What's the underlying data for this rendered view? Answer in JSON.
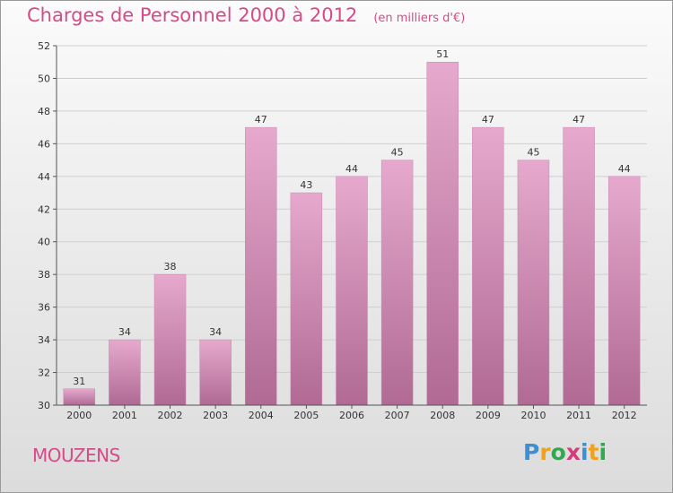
{
  "chart_data": {
    "type": "bar",
    "title": "Charges de Personnel 2000 à 2012",
    "subtitle": "(en milliers d'€)",
    "categories": [
      "2000",
      "2001",
      "2002",
      "2003",
      "2004",
      "2005",
      "2006",
      "2007",
      "2008",
      "2009",
      "2010",
      "2011",
      "2012"
    ],
    "values": [
      31,
      34,
      38,
      34,
      47,
      43,
      44,
      45,
      51,
      47,
      45,
      47,
      44
    ],
    "ylim": [
      30,
      52
    ],
    "yticks": [
      30,
      32,
      34,
      36,
      38,
      40,
      42,
      44,
      46,
      48,
      50,
      52
    ],
    "grid": true,
    "bar_color_top": "#e6a9cd",
    "bar_color_bottom": "#b06a94"
  },
  "footer": {
    "location": "MOUZENS",
    "logo": {
      "letters": [
        "P",
        "r",
        "o",
        "x",
        "i",
        "t",
        "i"
      ],
      "colors": [
        "#3b8fd4",
        "#f0a21d",
        "#2fa84f",
        "#d63b7a",
        "#3b8fd4",
        "#f0a21d",
        "#2fa84f"
      ]
    }
  }
}
